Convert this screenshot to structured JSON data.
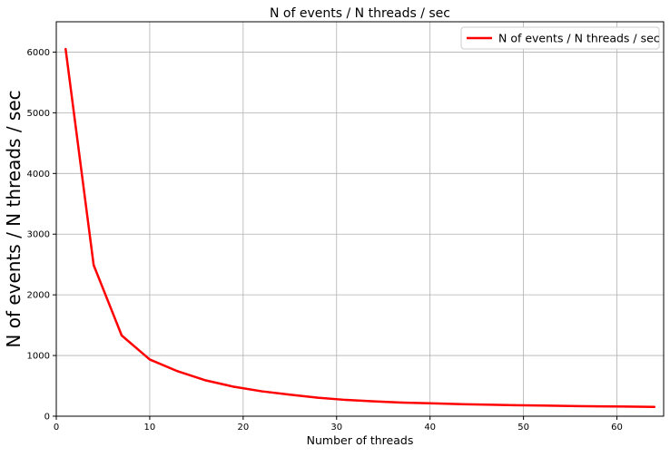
{
  "chart_data": {
    "type": "line",
    "title": "N of events / N threads / sec",
    "xlabel": "Number of threads",
    "ylabel": "N of events / N threads / sec",
    "xlim": [
      0,
      65
    ],
    "ylim": [
      0,
      6500
    ],
    "xticks": [
      0,
      10,
      20,
      30,
      40,
      50,
      60
    ],
    "yticks": [
      0,
      1000,
      2000,
      3000,
      4000,
      5000,
      6000
    ],
    "grid": true,
    "legend_position": "top-right",
    "series": [
      {
        "name": "N of events / N threads / sec",
        "color": "#ff0000",
        "x": [
          1,
          4,
          7,
          10,
          13,
          16,
          19,
          22,
          25,
          28,
          31,
          34,
          37,
          40,
          43,
          46,
          49,
          52,
          55,
          58,
          61,
          64
        ],
        "y": [
          6050,
          2490,
          1330,
          935,
          740,
          590,
          485,
          410,
          355,
          305,
          268,
          245,
          225,
          212,
          200,
          190,
          182,
          175,
          168,
          163,
          158,
          153
        ]
      }
    ]
  }
}
